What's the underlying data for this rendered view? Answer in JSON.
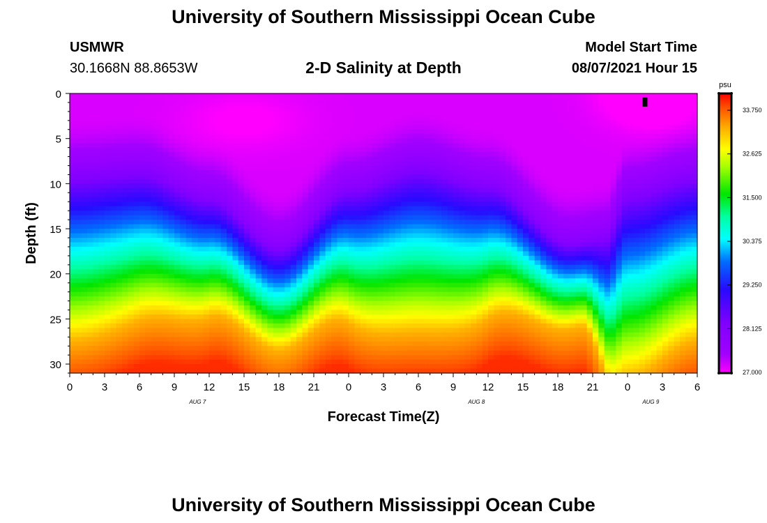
{
  "header": {
    "title_top": "University of Southern Mississippi Ocean Cube",
    "title_bottom": "University of Southern Mississippi Ocean Cube",
    "station_name": "USMWR",
    "station_coords": "30.1668N  88.8653W",
    "plot_title": "2-D Salinity at Depth",
    "model_start_label": "Model Start Time",
    "model_start_value": "08/07/2021 Hour 15"
  },
  "chart_data": {
    "type": "heatmap",
    "title": "2-D Salinity at Depth",
    "xlabel": "Forecast Time(Z)",
    "ylabel": "Depth (ft)",
    "x_range_hours": [
      0,
      54
    ],
    "ylim": [
      0,
      31
    ],
    "y_ticks": [
      0,
      5,
      10,
      15,
      20,
      25,
      30
    ],
    "x_tick_hours": [
      0,
      3,
      6,
      9,
      12,
      15,
      18,
      21,
      24,
      27,
      30,
      33,
      36,
      39,
      42,
      45,
      48,
      51,
      54
    ],
    "x_tick_labels": [
      "0",
      "3",
      "6",
      "9",
      "12",
      "15",
      "18",
      "21",
      "0",
      "3",
      "6",
      "9",
      "12",
      "15",
      "18",
      "21",
      "0",
      "3",
      "6"
    ],
    "day_labels": [
      {
        "hour": 11,
        "text": "AUG 7"
      },
      {
        "hour": 35,
        "text": "AUG 8"
      },
      {
        "hour": 50,
        "text": "AUG 9"
      }
    ],
    "colorbar": {
      "unit": "psu",
      "min": 27.0,
      "max": 34.2,
      "ticks": [
        "27.000",
        "28.125",
        "29.250",
        "30.375",
        "31.500",
        "32.625",
        "33.750"
      ],
      "tick_values": [
        27.0,
        28.125,
        29.25,
        30.375,
        31.5,
        32.625,
        33.75
      ]
    },
    "surface_salinity_psu": 27.2,
    "bottom_salinity_psu": 34.0,
    "halocline_depth_ft": [
      {
        "hour": 0,
        "depth": 10.5
      },
      {
        "hour": 6,
        "depth": 10.0
      },
      {
        "hour": 12,
        "depth": 13.0
      },
      {
        "hour": 18,
        "depth": 18.5
      },
      {
        "hour": 24,
        "depth": 12.0
      },
      {
        "hour": 30,
        "depth": 9.5
      },
      {
        "hour": 36,
        "depth": 11.5
      },
      {
        "hour": 43,
        "depth": 18.0
      },
      {
        "hour": 46,
        "depth": 17.5
      },
      {
        "hour": 48,
        "depth": 12.5
      },
      {
        "hour": 54,
        "depth": 10.5
      }
    ],
    "halocline_thickness_ft": [
      {
        "hour": 0,
        "thick": 17
      },
      {
        "hour": 18,
        "thick": 10
      },
      {
        "hour": 30,
        "thick": 17
      },
      {
        "hour": 44,
        "thick": 8
      },
      {
        "hour": 48,
        "thick": 19
      },
      {
        "hour": 54,
        "thick": 17
      }
    ],
    "marker": {
      "hour": 49.5,
      "depth": 1
    }
  },
  "colors": {
    "frame": "#000000",
    "colorbar_border": "#000000"
  }
}
